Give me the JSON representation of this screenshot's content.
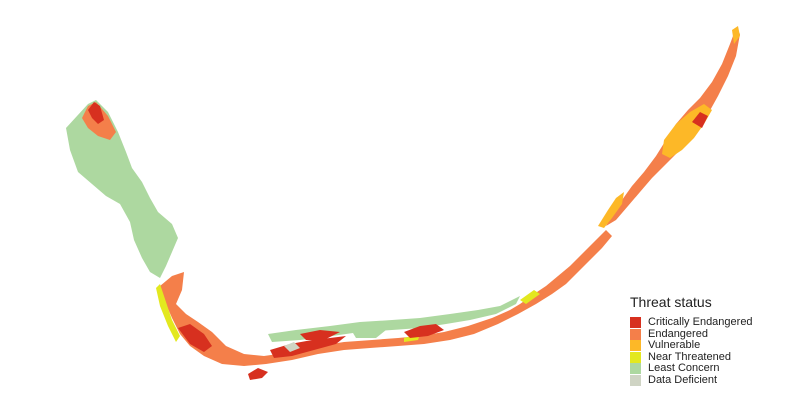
{
  "legend": {
    "title": "Threat status",
    "items": [
      {
        "label": "Critically Endangered",
        "color": "#d7301f"
      },
      {
        "label": "Endangered",
        "color": "#f47f4a"
      },
      {
        "label": "Vulnerable",
        "color": "#fdb827"
      },
      {
        "label": "Near Threatened",
        "color": "#e3e81f"
      },
      {
        "label": "Least Concern",
        "color": "#add8a0"
      },
      {
        "label": "Data Deficient",
        "color": "#cfd4c4"
      }
    ]
  }
}
